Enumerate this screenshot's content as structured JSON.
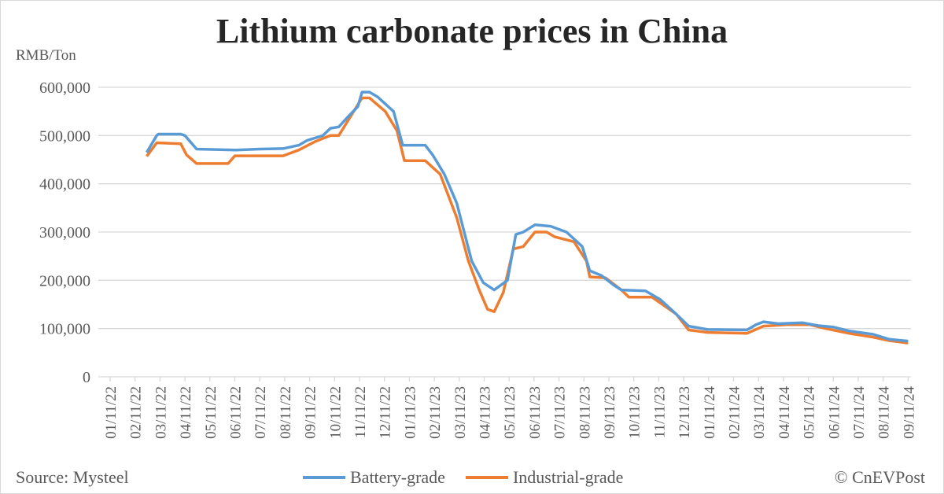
{
  "chart_data": {
    "type": "line",
    "title": "Lithium carbonate prices in China",
    "ylabel": "RMB/Ton",
    "ylim": [
      0,
      600000
    ],
    "yticks": [
      "0",
      "100,000",
      "200,000",
      "300,000",
      "400,000",
      "500,000",
      "600,000"
    ],
    "xticks": [
      "01/11/22",
      "02/11/22",
      "03/11/22",
      "04/11/22",
      "05/11/22",
      "06/11/22",
      "07/11/22",
      "08/11/22",
      "09/11/22",
      "10/11/22",
      "11/11/22",
      "12/11/22",
      "01/11/23",
      "02/11/23",
      "03/11/23",
      "04/11/23",
      "05/11/23",
      "06/11/23",
      "07/11/23",
      "08/11/23",
      "09/11/23",
      "10/11/23",
      "11/11/23",
      "12/11/23",
      "01/11/24",
      "02/11/24",
      "03/11/24",
      "04/11/24",
      "05/11/24",
      "06/11/24",
      "07/11/24",
      "08/11/24",
      "09/11/24"
    ],
    "grid": true,
    "legend": "bottom",
    "series": [
      {
        "name": "Battery-grade",
        "color": "#5b9bd5",
        "points": [
          [
            "2022-02-25",
            465000
          ],
          [
            "2022-03-07",
            500000
          ],
          [
            "2022-03-09",
            503000
          ],
          [
            "2022-04-06",
            503000
          ],
          [
            "2022-04-11",
            500000
          ],
          [
            "2022-04-25",
            472000
          ],
          [
            "2022-06-12",
            470000
          ],
          [
            "2022-07-11",
            472000
          ],
          [
            "2022-08-09",
            473000
          ],
          [
            "2022-08-28",
            480000
          ],
          [
            "2022-09-08",
            490000
          ],
          [
            "2022-09-27",
            500000
          ],
          [
            "2022-10-06",
            515000
          ],
          [
            "2022-10-16",
            518000
          ],
          [
            "2022-10-25",
            535000
          ],
          [
            "2022-11-09",
            560000
          ],
          [
            "2022-11-14",
            590000
          ],
          [
            "2022-11-23",
            590000
          ],
          [
            "2022-12-03",
            580000
          ],
          [
            "2022-12-22",
            550000
          ],
          [
            "2023-01-03",
            480000
          ],
          [
            "2023-01-30",
            480000
          ],
          [
            "2023-02-09",
            460000
          ],
          [
            "2023-02-23",
            420000
          ],
          [
            "2023-03-08",
            360000
          ],
          [
            "2023-03-17",
            300000
          ],
          [
            "2023-03-26",
            240000
          ],
          [
            "2023-04-10",
            195000
          ],
          [
            "2023-04-23",
            180000
          ],
          [
            "2023-05-09",
            200000
          ],
          [
            "2023-05-19",
            295000
          ],
          [
            "2023-05-28",
            300000
          ],
          [
            "2023-06-12",
            315000
          ],
          [
            "2023-07-01",
            312000
          ],
          [
            "2023-07-20",
            300000
          ],
          [
            "2023-08-09",
            270000
          ],
          [
            "2023-08-18",
            220000
          ],
          [
            "2023-09-02",
            210000
          ],
          [
            "2023-09-17",
            190000
          ],
          [
            "2023-09-26",
            180000
          ],
          [
            "2023-10-25",
            178000
          ],
          [
            "2023-11-13",
            160000
          ],
          [
            "2023-12-02",
            130000
          ],
          [
            "2023-12-17",
            105000
          ],
          [
            "2024-01-10",
            98000
          ],
          [
            "2024-02-27",
            97000
          ],
          [
            "2024-03-08",
            108000
          ],
          [
            "2024-03-17",
            114000
          ],
          [
            "2024-04-05",
            110000
          ],
          [
            "2024-05-04",
            112000
          ],
          [
            "2024-05-23",
            106000
          ],
          [
            "2024-06-11",
            103000
          ],
          [
            "2024-06-30",
            95000
          ],
          [
            "2024-07-29",
            88000
          ],
          [
            "2024-08-18",
            78000
          ],
          [
            "2024-09-11",
            74000
          ]
        ]
      },
      {
        "name": "Industrial-grade",
        "color": "#ed7d31",
        "points": [
          [
            "2022-02-25",
            457000
          ],
          [
            "2022-03-07",
            485000
          ],
          [
            "2022-04-06",
            483000
          ],
          [
            "2022-04-13",
            460000
          ],
          [
            "2022-04-25",
            442000
          ],
          [
            "2022-06-03",
            442000
          ],
          [
            "2022-06-11",
            458000
          ],
          [
            "2022-08-09",
            458000
          ],
          [
            "2022-08-28",
            470000
          ],
          [
            "2022-09-17",
            487000
          ],
          [
            "2022-10-06",
            500000
          ],
          [
            "2022-10-16",
            500000
          ],
          [
            "2022-10-25",
            525000
          ],
          [
            "2022-11-14",
            578000
          ],
          [
            "2022-11-23",
            578000
          ],
          [
            "2022-12-12",
            550000
          ],
          [
            "2022-12-26",
            510000
          ],
          [
            "2023-01-05",
            448000
          ],
          [
            "2023-01-30",
            448000
          ],
          [
            "2023-02-18",
            420000
          ],
          [
            "2023-03-08",
            330000
          ],
          [
            "2023-03-22",
            240000
          ],
          [
            "2023-04-05",
            180000
          ],
          [
            "2023-04-15",
            140000
          ],
          [
            "2023-04-23",
            135000
          ],
          [
            "2023-05-04",
            175000
          ],
          [
            "2023-05-16",
            265000
          ],
          [
            "2023-05-28",
            270000
          ],
          [
            "2023-06-12",
            300000
          ],
          [
            "2023-06-26",
            300000
          ],
          [
            "2023-07-06",
            290000
          ],
          [
            "2023-07-29",
            280000
          ],
          [
            "2023-08-14",
            240000
          ],
          [
            "2023-08-18",
            207000
          ],
          [
            "2023-09-07",
            205000
          ],
          [
            "2023-09-26",
            180000
          ],
          [
            "2023-10-05",
            165000
          ],
          [
            "2023-11-03",
            165000
          ],
          [
            "2023-12-02",
            130000
          ],
          [
            "2023-12-17",
            97000
          ],
          [
            "2024-01-10",
            92000
          ],
          [
            "2024-02-27",
            90000
          ],
          [
            "2024-03-17",
            105000
          ],
          [
            "2024-04-15",
            108000
          ],
          [
            "2024-05-13",
            108000
          ],
          [
            "2024-06-02",
            100000
          ],
          [
            "2024-06-30",
            90000
          ],
          [
            "2024-07-29",
            82000
          ],
          [
            "2024-08-18",
            75000
          ],
          [
            "2024-09-11",
            70000
          ]
        ]
      }
    ]
  },
  "source": "Source: Mysteel",
  "copyright": "© CnEVPost"
}
